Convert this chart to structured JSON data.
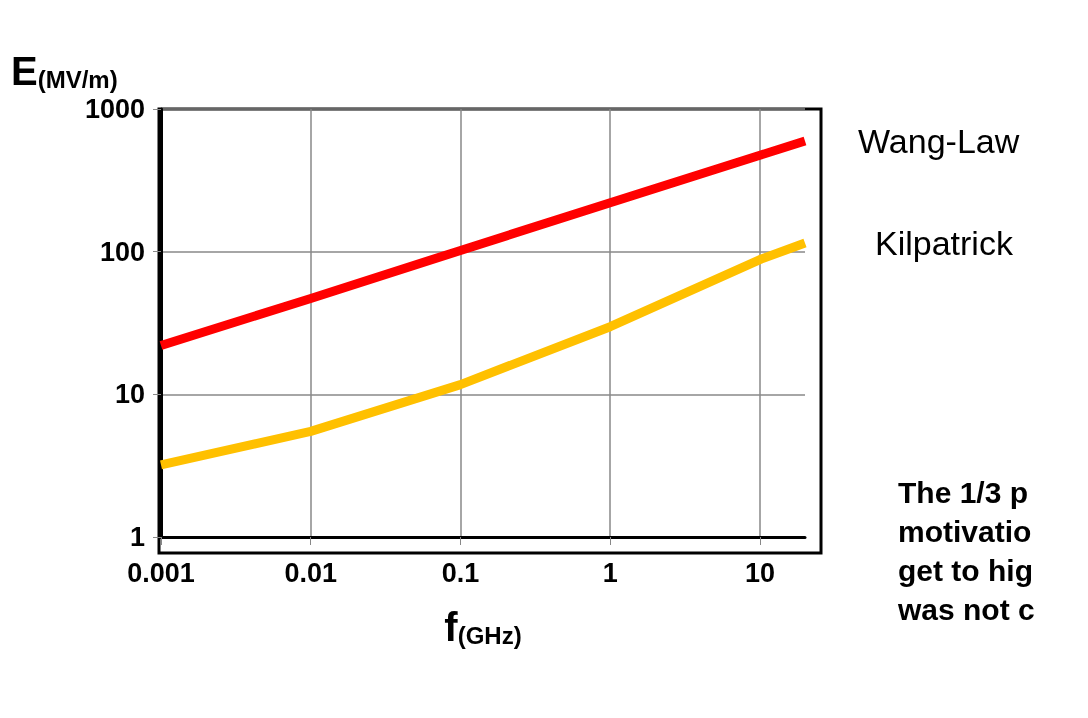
{
  "chart_data": {
    "type": "line",
    "xlabel": "f$_{(GHz)}$",
    "ylabel": "E$_{(MV/m)}$",
    "x": [
      0.001,
      0.01,
      0.1,
      1,
      10,
      20
    ],
    "series": [
      {
        "name": "Wang-Law",
        "color": "#ff0000",
        "values": [
          22,
          47,
          102,
          220,
          474,
          597
        ]
      },
      {
        "name": "Kilpatrick",
        "color": "#ffc000",
        "values": [
          3.2,
          5.5,
          11.7,
          29.8,
          88,
          115
        ]
      }
    ],
    "log": "xy",
    "xlim": [
      0.001,
      20
    ],
    "ylim": [
      1,
      1000
    ],
    "xticks": [
      0.001,
      0.01,
      0.1,
      1,
      10
    ],
    "yticks": [
      1,
      10,
      100,
      1000
    ],
    "grid": true,
    "marker": "none",
    "line_style": "solid",
    "annotations": [
      "The 1/3 p\nmotivatio\nget to hig\nwas not c"
    ]
  }
}
